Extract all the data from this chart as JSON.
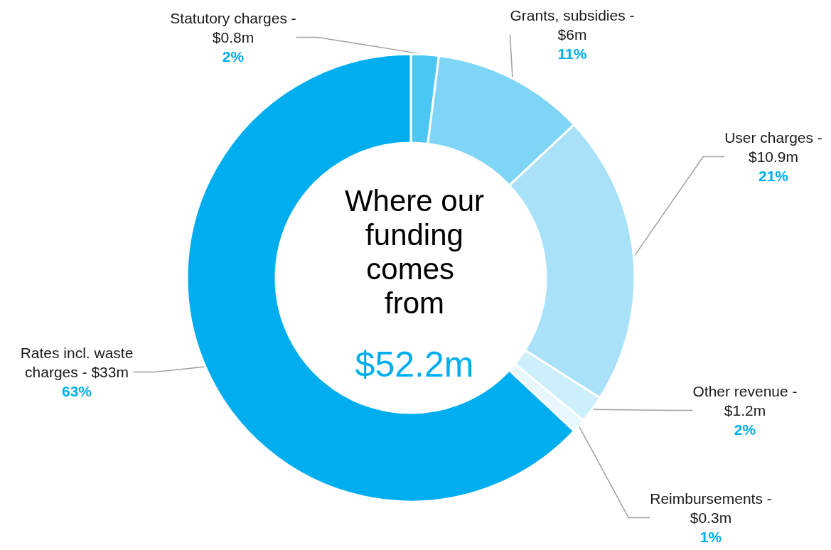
{
  "chart_data": {
    "type": "donut",
    "title": "Where our funding comes from",
    "subtitle": "$52.2m",
    "categories": [
      "Statutory charges - $0.8m",
      "Grants, subsidies - $6m",
      "User charges - $10.9m",
      "Other revenue - $1.2m",
      "Reimbursements - $0.3m",
      "Rates incl. waste charges - $33m"
    ],
    "values": [
      2,
      11,
      21,
      2,
      1,
      63
    ],
    "value_labels": [
      "2%",
      "11%",
      "21%",
      "2%",
      "1%",
      "63%"
    ],
    "colors": [
      "#4cc6f2",
      "#7fd5f6",
      "#a9e2f8",
      "#cdeefb",
      "#e8f7fd",
      "#00aeef"
    ],
    "legend": false
  }
}
